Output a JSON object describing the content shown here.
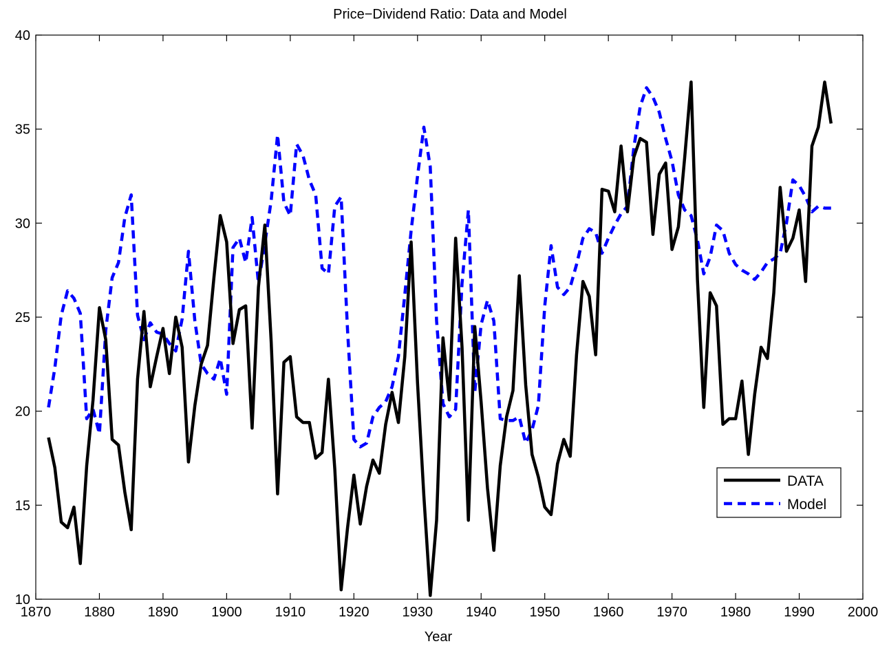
{
  "chart_data": {
    "type": "line",
    "title": "Price−Dividend Ratio: Data and Model",
    "xlabel": "Year",
    "ylabel": "",
    "xlim": [
      1870,
      2000
    ],
    "ylim": [
      10,
      40
    ],
    "xticks": [
      1870,
      1880,
      1890,
      1900,
      1910,
      1920,
      1930,
      1940,
      1950,
      1960,
      1970,
      1980,
      1990,
      2000
    ],
    "yticks": [
      10,
      15,
      20,
      25,
      30,
      35,
      40
    ],
    "grid": false,
    "legend_position": "lower-right",
    "x": [
      1872,
      1873,
      1874,
      1875,
      1876,
      1877,
      1878,
      1879,
      1880,
      1881,
      1882,
      1883,
      1884,
      1885,
      1886,
      1887,
      1888,
      1889,
      1890,
      1891,
      1892,
      1893,
      1894,
      1895,
      1896,
      1897,
      1898,
      1899,
      1900,
      1901,
      1902,
      1903,
      1904,
      1905,
      1906,
      1907,
      1908,
      1909,
      1910,
      1911,
      1912,
      1913,
      1914,
      1915,
      1916,
      1917,
      1918,
      1919,
      1920,
      1921,
      1922,
      1923,
      1924,
      1925,
      1926,
      1927,
      1928,
      1929,
      1930,
      1931,
      1932,
      1933,
      1934,
      1935,
      1936,
      1937,
      1938,
      1939,
      1940,
      1941,
      1942,
      1943,
      1944,
      1945,
      1946,
      1947,
      1948,
      1949,
      1950,
      1951,
      1952,
      1953,
      1954,
      1955,
      1956,
      1957,
      1958,
      1959,
      1960,
      1961,
      1962,
      1963,
      1964,
      1965,
      1966,
      1967,
      1968,
      1969,
      1970,
      1971,
      1972,
      1973,
      1974,
      1975,
      1976,
      1977,
      1978,
      1979,
      1980,
      1981,
      1982,
      1983,
      1984,
      1985,
      1986,
      1987,
      1988,
      1989,
      1990,
      1991,
      1992,
      1993,
      1994,
      1995
    ],
    "series": [
      {
        "name": "DATA",
        "color": "#000000",
        "style": "solid",
        "values": [
          18.6,
          17.0,
          14.1,
          13.8,
          14.9,
          11.9,
          17.1,
          20.6,
          25.5,
          23.8,
          18.5,
          18.2,
          15.7,
          13.7,
          21.7,
          25.3,
          21.3,
          22.9,
          24.4,
          22.0,
          25.0,
          23.4,
          17.3,
          20.3,
          22.5,
          23.5,
          27.1,
          30.4,
          29.0,
          23.6,
          25.4,
          25.6,
          19.1,
          26.6,
          29.9,
          23.7,
          15.6,
          22.6,
          22.9,
          19.7,
          19.4,
          19.4,
          17.5,
          17.8,
          21.7,
          16.9,
          10.5,
          13.8,
          16.6,
          14.0,
          16.0,
          17.4,
          16.7,
          19.3,
          21.0,
          19.4,
          22.9,
          29.0,
          21.5,
          15.5,
          10.2,
          14.2,
          23.9,
          20.6,
          29.2,
          23.4,
          14.2,
          24.5,
          20.5,
          15.9,
          12.6,
          17.1,
          19.7,
          21.1,
          27.2,
          21.4,
          17.7,
          16.5,
          14.9,
          14.5,
          17.2,
          18.5,
          17.6,
          23.0,
          26.9,
          26.1,
          23.0,
          31.8,
          31.7,
          30.6,
          34.1,
          30.6,
          33.5,
          34.5,
          34.3,
          29.4,
          32.6,
          33.2,
          28.6,
          29.8,
          33.5,
          37.5,
          27.0,
          20.2,
          26.3,
          25.6,
          19.3,
          19.6,
          19.6,
          21.6,
          17.7,
          20.9,
          23.4,
          22.8,
          26.3,
          31.9,
          28.5,
          29.2,
          30.7,
          26.9,
          34.1,
          35.1,
          37.5,
          35.3
        ]
      },
      {
        "name": "Model",
        "color": "#0000ff",
        "style": "dashed",
        "values": [
          20.2,
          22.3,
          25.1,
          26.4,
          26.0,
          25.2,
          19.6,
          20.1,
          18.8,
          24.3,
          27.1,
          27.9,
          30.3,
          31.5,
          25.1,
          23.8,
          24.7,
          24.2,
          24.1,
          23.6,
          23.2,
          24.9,
          28.5,
          24.8,
          22.5,
          22.0,
          21.7,
          22.8,
          20.9,
          28.7,
          29.2,
          27.9,
          30.3,
          26.8,
          28.9,
          31.2,
          34.7,
          31.1,
          30.4,
          34.2,
          33.6,
          32.3,
          31.5,
          27.6,
          27.3,
          30.9,
          31.4,
          24.3,
          18.5,
          18.1,
          18.3,
          19.7,
          20.2,
          20.5,
          21.3,
          22.9,
          26.2,
          29.6,
          32.5,
          35.1,
          33.0,
          24.8,
          20.4,
          19.7,
          20.1,
          26.8,
          30.7,
          21.0,
          24.6,
          25.9,
          24.8,
          19.6,
          19.5,
          19.5,
          19.7,
          18.3,
          19.0,
          20.3,
          25.6,
          28.8,
          26.6,
          26.2,
          26.6,
          27.8,
          29.2,
          29.7,
          29.5,
          28.4,
          29.2,
          29.9,
          30.5,
          30.9,
          34.0,
          36.2,
          37.2,
          36.7,
          35.9,
          34.5,
          33.3,
          31.5,
          30.7,
          30.4,
          29.1,
          27.3,
          28.2,
          29.9,
          29.6,
          28.4,
          27.8,
          27.5,
          27.3,
          27.0,
          27.4,
          27.9,
          28.1,
          28.4,
          30.0,
          32.3,
          32.0,
          31.4,
          30.6,
          30.9,
          30.8,
          30.8
        ]
      }
    ]
  }
}
